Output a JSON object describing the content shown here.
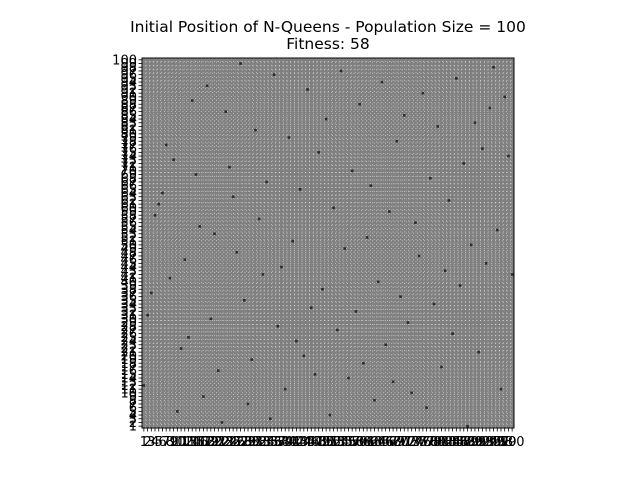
{
  "chart_data": {
    "type": "heatmap",
    "title": "Initial Position of N-Queens - Population Size = 100",
    "subtitle": "Fitness: 58",
    "xlabel": "",
    "ylabel": "",
    "n": 100,
    "xlim": [
      1,
      100
    ],
    "ylim": [
      1,
      100
    ],
    "grid": true,
    "colors": {
      "background": "#808080",
      "grid": "#ffffff",
      "queen": "#2b2b2b",
      "frame": "#000000"
    },
    "queens": [
      [
        1,
        12
      ],
      [
        2,
        31
      ],
      [
        3,
        37
      ],
      [
        4,
        58
      ],
      [
        5,
        61
      ],
      [
        6,
        64
      ],
      [
        7,
        77
      ],
      [
        8,
        41
      ],
      [
        9,
        73
      ],
      [
        10,
        5
      ],
      [
        11,
        22
      ],
      [
        12,
        46
      ],
      [
        13,
        25
      ],
      [
        14,
        89
      ],
      [
        15,
        69
      ],
      [
        16,
        55
      ],
      [
        17,
        9
      ],
      [
        18,
        93
      ],
      [
        19,
        30
      ],
      [
        20,
        53
      ],
      [
        21,
        16
      ],
      [
        22,
        2
      ],
      [
        23,
        86
      ],
      [
        24,
        71
      ],
      [
        25,
        63
      ],
      [
        26,
        48
      ],
      [
        27,
        99
      ],
      [
        28,
        35
      ],
      [
        29,
        7
      ],
      [
        30,
        19
      ],
      [
        31,
        81
      ],
      [
        32,
        57
      ],
      [
        33,
        42
      ],
      [
        34,
        67
      ],
      [
        35,
        3
      ],
      [
        36,
        96
      ],
      [
        37,
        28
      ],
      [
        38,
        44
      ],
      [
        39,
        11
      ],
      [
        40,
        79
      ],
      [
        41,
        51
      ],
      [
        42,
        24
      ],
      [
        43,
        65
      ],
      [
        44,
        20
      ],
      [
        45,
        92
      ],
      [
        46,
        33
      ],
      [
        47,
        15
      ],
      [
        48,
        75
      ],
      [
        49,
        38
      ],
      [
        50,
        84
      ],
      [
        51,
        4
      ],
      [
        52,
        60
      ],
      [
        53,
        27
      ],
      [
        54,
        97
      ],
      [
        55,
        49
      ],
      [
        56,
        14
      ],
      [
        57,
        70
      ],
      [
        58,
        32
      ],
      [
        59,
        88
      ],
      [
        60,
        18
      ],
      [
        61,
        52
      ],
      [
        62,
        66
      ],
      [
        63,
        8
      ],
      [
        64,
        40
      ],
      [
        65,
        94
      ],
      [
        66,
        23
      ],
      [
        67,
        59
      ],
      [
        68,
        13
      ],
      [
        69,
        78
      ],
      [
        70,
        36
      ],
      [
        71,
        85
      ],
      [
        72,
        29
      ],
      [
        73,
        10
      ],
      [
        74,
        56
      ],
      [
        75,
        47
      ],
      [
        76,
        91
      ],
      [
        77,
        6
      ],
      [
        78,
        68
      ],
      [
        79,
        34
      ],
      [
        80,
        82
      ],
      [
        81,
        17
      ],
      [
        82,
        43
      ],
      [
        83,
        62
      ],
      [
        84,
        26
      ],
      [
        85,
        95
      ],
      [
        86,
        39
      ],
      [
        87,
        72
      ],
      [
        88,
        1
      ],
      [
        89,
        50
      ],
      [
        90,
        83
      ],
      [
        91,
        21
      ],
      [
        92,
        76
      ],
      [
        93,
        45
      ],
      [
        94,
        87
      ],
      [
        95,
        98
      ],
      [
        96,
        54
      ],
      [
        97,
        11
      ],
      [
        98,
        90
      ],
      [
        99,
        74
      ],
      [
        100,
        42
      ]
    ],
    "y_tick_labels": [
      "1",
      "2",
      "3",
      "4",
      "5",
      "6",
      "7",
      "8",
      "9",
      "10",
      "11",
      "12",
      "13",
      "14",
      "15",
      "16",
      "17",
      "18",
      "19",
      "20",
      "21",
      "22",
      "23",
      "24",
      "25",
      "26",
      "27",
      "28",
      "29",
      "30",
      "31",
      "32",
      "33",
      "34",
      "35",
      "36",
      "37",
      "38",
      "39",
      "40",
      "41",
      "42",
      "43",
      "44",
      "45",
      "46",
      "47",
      "48",
      "49",
      "50",
      "51",
      "52",
      "53",
      "54",
      "55",
      "56",
      "57",
      "58",
      "59",
      "60",
      "61",
      "62",
      "63",
      "64",
      "65",
      "66",
      "67",
      "68",
      "69",
      "70",
      "71",
      "72",
      "73",
      "74",
      "75",
      "76",
      "77",
      "78",
      "79",
      "80",
      "81",
      "82",
      "83",
      "84",
      "85",
      "86",
      "87",
      "88",
      "89",
      "90",
      "91",
      "92",
      "93",
      "94",
      "95",
      "96",
      "97",
      "98",
      "99",
      "100"
    ],
    "x_tick_labels": [
      "1",
      "2",
      "3",
      "4",
      "5",
      "6",
      "7",
      "8",
      "9",
      "10",
      "11",
      "12",
      "13",
      "14",
      "15",
      "16",
      "17",
      "18",
      "19",
      "20",
      "21",
      "22",
      "23",
      "24",
      "25",
      "26",
      "27",
      "28",
      "29",
      "30",
      "31",
      "32",
      "33",
      "34",
      "35",
      "36",
      "37",
      "38",
      "39",
      "40",
      "41",
      "42",
      "43",
      "44",
      "45",
      "46",
      "47",
      "48",
      "49",
      "50",
      "51",
      "52",
      "53",
      "54",
      "55",
      "56",
      "57",
      "58",
      "59",
      "60",
      "61",
      "62",
      "63",
      "64",
      "65",
      "66",
      "67",
      "68",
      "69",
      "70",
      "71",
      "72",
      "73",
      "74",
      "75",
      "76",
      "77",
      "78",
      "79",
      "80",
      "81",
      "82",
      "83",
      "84",
      "85",
      "86",
      "87",
      "88",
      "89",
      "90",
      "91",
      "92",
      "93",
      "94",
      "95",
      "96",
      "97",
      "98",
      "99",
      "100"
    ]
  }
}
